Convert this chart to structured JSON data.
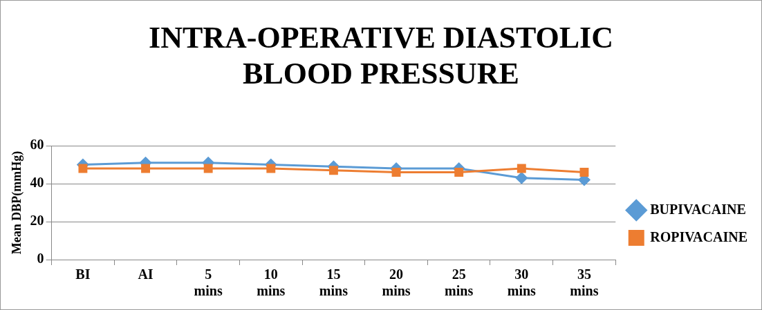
{
  "chart_data": {
    "type": "line",
    "title": "INTRA-OPERATIVE DIASTOLIC BLOOD PRESSURE",
    "ylabel": "Mean DBP(mmHg)",
    "categories": [
      "BI",
      "AI",
      "5 mins",
      "10 mins",
      "15 mins",
      "20 mins",
      "25 mins",
      "30 mins",
      "35 mins"
    ],
    "series": [
      {
        "name": "BUPIVACAINE",
        "color": "#5b9bd5",
        "marker": "diamond",
        "values": [
          50,
          51,
          51,
          50,
          49,
          48,
          48,
          43,
          42
        ]
      },
      {
        "name": "ROPIVACAINE",
        "color": "#ed7d31",
        "marker": "square",
        "values": [
          48,
          48,
          48,
          48,
          47,
          46,
          46,
          48,
          46
        ]
      }
    ],
    "ylim": [
      0,
      60
    ],
    "yticks": [
      0,
      20,
      40,
      60
    ],
    "grid": "y",
    "legend": "right"
  }
}
